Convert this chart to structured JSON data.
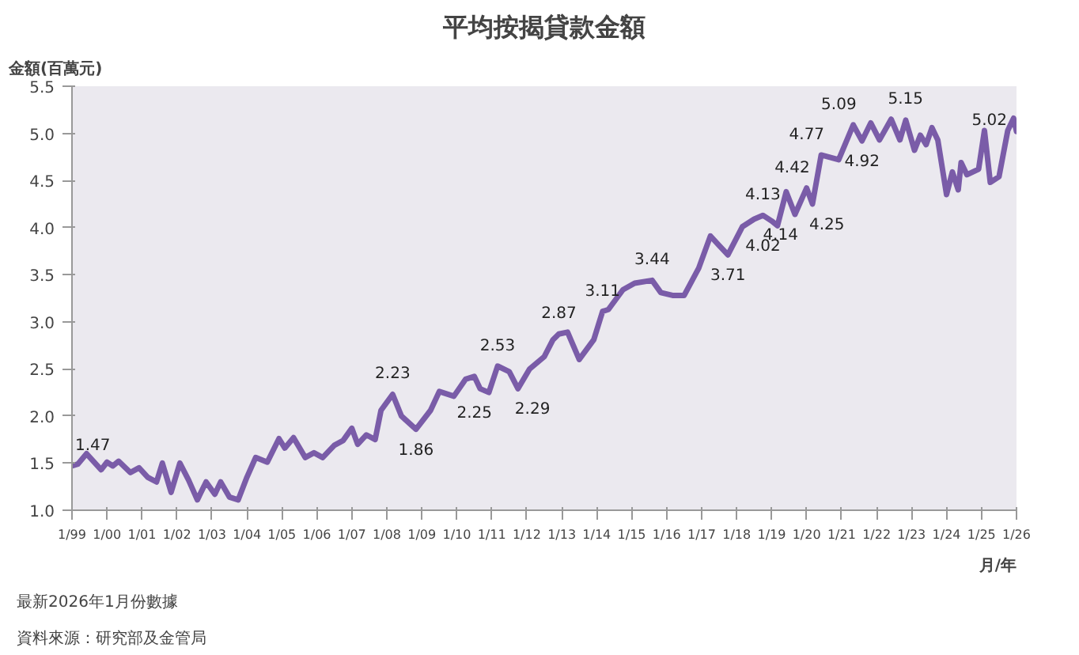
{
  "chart_data": {
    "type": "line",
    "title": "平均按揭貸款金額",
    "ylabel": "金額(百萬元)",
    "xlabel": "月/年",
    "annotations": [
      {
        "text": "1.47",
        "x": "1999-01",
        "y": 1.47
      },
      {
        "text": "2.23",
        "x": "2008-03",
        "y": 2.23
      },
      {
        "text": "1.86",
        "x": "2008-11",
        "y": 1.86
      },
      {
        "text": "2.25",
        "x": "2010-12",
        "y": 2.25
      },
      {
        "text": "2.29",
        "x": "2011-10",
        "y": 2.29
      },
      {
        "text": "2.53",
        "x": "2011-03",
        "y": 2.53
      },
      {
        "text": "2.87",
        "x": "2012-12",
        "y": 2.87
      },
      {
        "text": "3.11",
        "x": "2014-03",
        "y": 3.11
      },
      {
        "text": "3.44",
        "x": "2015-08",
        "y": 3.44
      },
      {
        "text": "3.71",
        "x": "2017-10",
        "y": 3.71
      },
      {
        "text": "4.13",
        "x": "2018-10",
        "y": 4.13
      },
      {
        "text": "4.02",
        "x": "2019-03",
        "y": 4.02
      },
      {
        "text": "4.14",
        "x": "2019-09",
        "y": 4.14
      },
      {
        "text": "4.25",
        "x": "2020-03",
        "y": 4.25
      },
      {
        "text": "4.42",
        "x": "2020-01",
        "y": 4.42
      },
      {
        "text": "4.77",
        "x": "2020-06",
        "y": 4.77
      },
      {
        "text": "5.09",
        "x": "2021-05",
        "y": 5.09
      },
      {
        "text": "4.92",
        "x": "2021-08",
        "y": 4.92
      },
      {
        "text": "5.15",
        "x": "2022-06",
        "y": 5.15
      },
      {
        "text": "5.02",
        "x": "2026-01",
        "y": 5.02
      },
      "最新2026年1月份數據",
      "資料來源：研究部及金管局"
    ],
    "x": [
      "1999-01",
      "1999-03",
      "1999-06",
      "1999-11",
      "2000-01",
      "2000-03",
      "2000-05",
      "2000-09",
      "2000-12",
      "2001-03",
      "2001-06",
      "2001-08",
      "2001-11",
      "2002-02",
      "2002-05",
      "2002-08",
      "2002-11",
      "2003-02",
      "2003-04",
      "2003-07",
      "2003-10",
      "2004-01",
      "2004-04",
      "2004-08",
      "2004-12",
      "2005-02",
      "2005-05",
      "2005-09",
      "2005-12",
      "2006-03",
      "2006-07",
      "2006-10",
      "2007-01",
      "2007-03",
      "2007-06",
      "2007-09",
      "2007-11",
      "2008-03",
      "2008-06",
      "2008-11",
      "2009-04",
      "2009-07",
      "2009-12",
      "2010-04",
      "2010-07",
      "2010-09",
      "2010-12",
      "2011-03",
      "2011-07",
      "2011-10",
      "2012-02",
      "2012-07",
      "2012-10",
      "2012-12",
      "2013-03",
      "2013-07",
      "2013-12",
      "2014-03",
      "2014-05",
      "2014-10",
      "2015-02",
      "2015-08",
      "2015-11",
      "2016-03",
      "2016-07",
      "2016-12",
      "2017-04",
      "2017-07",
      "2017-10",
      "2018-03",
      "2018-07",
      "2018-10",
      "2019-01",
      "2019-03",
      "2019-06",
      "2019-09",
      "2020-01",
      "2020-03",
      "2020-06",
      "2020-12",
      "2021-05",
      "2021-08",
      "2021-11",
      "2022-02",
      "2022-06",
      "2022-09",
      "2022-11",
      "2023-02",
      "2023-04",
      "2023-06",
      "2023-08",
      "2023-10",
      "2024-01",
      "2024-03",
      "2024-05",
      "2024-06",
      "2024-08",
      "2024-12",
      "2025-02",
      "2025-04",
      "2025-07",
      "2025-10",
      "2025-12",
      "2026-01"
    ],
    "series": [
      {
        "color": "#7a5ca8",
        "values": [
          1.47,
          1.49,
          1.6,
          1.43,
          1.51,
          1.47,
          1.52,
          1.4,
          1.45,
          1.35,
          1.3,
          1.5,
          1.19,
          1.5,
          1.32,
          1.11,
          1.3,
          1.17,
          1.3,
          1.14,
          1.11,
          1.35,
          1.56,
          1.51,
          1.76,
          1.66,
          1.77,
          1.56,
          1.61,
          1.56,
          1.69,
          1.74,
          1.87,
          1.7,
          1.8,
          1.75,
          2.06,
          2.23,
          2.0,
          1.86,
          2.06,
          2.26,
          2.21,
          2.39,
          2.42,
          2.29,
          2.25,
          2.53,
          2.47,
          2.29,
          2.5,
          2.63,
          2.81,
          2.87,
          2.89,
          2.6,
          2.81,
          3.11,
          3.13,
          3.34,
          3.41,
          3.44,
          3.31,
          3.28,
          3.28,
          3.57,
          3.91,
          3.81,
          3.71,
          4.01,
          4.09,
          4.13,
          4.07,
          4.02,
          4.38,
          4.14,
          4.42,
          4.25,
          4.77,
          4.72,
          5.09,
          4.92,
          5.11,
          4.93,
          5.15,
          4.93,
          5.14,
          4.82,
          4.98,
          4.88,
          5.06,
          4.93,
          4.35,
          4.59,
          4.4,
          4.69,
          4.56,
          4.62,
          5.03,
          4.48,
          4.54,
          5.03,
          5.16,
          5.02
        ]
      }
    ],
    "xlim": [
      "1999-01",
      "2026-01"
    ],
    "xticks": [
      {
        "value": "1999-01",
        "label": "1/99"
      },
      {
        "value": "2000-01",
        "label": "1/00"
      },
      {
        "value": "2001-01",
        "label": "1/01"
      },
      {
        "value": "2002-01",
        "label": "1/02"
      },
      {
        "value": "2003-01",
        "label": "1/03"
      },
      {
        "value": "2004-01",
        "label": "1/04"
      },
      {
        "value": "2005-01",
        "label": "1/05"
      },
      {
        "value": "2006-01",
        "label": "1/06"
      },
      {
        "value": "2007-01",
        "label": "1/07"
      },
      {
        "value": "2008-01",
        "label": "1/08"
      },
      {
        "value": "2009-01",
        "label": "1/09"
      },
      {
        "value": "2010-01",
        "label": "1/10"
      },
      {
        "value": "2011-01",
        "label": "1/11"
      },
      {
        "value": "2012-01",
        "label": "1/12"
      },
      {
        "value": "2013-01",
        "label": "1/13"
      },
      {
        "value": "2014-01",
        "label": "1/14"
      },
      {
        "value": "2015-01",
        "label": "1/15"
      },
      {
        "value": "2016-01",
        "label": "1/16"
      },
      {
        "value": "2017-01",
        "label": "1/17"
      },
      {
        "value": "2018-01",
        "label": "1/18"
      },
      {
        "value": "2019-01",
        "label": "1/19"
      },
      {
        "value": "2020-01",
        "label": "1/20"
      },
      {
        "value": "2021-01",
        "label": "1/21"
      },
      {
        "value": "2022-01",
        "label": "1/22"
      },
      {
        "value": "2023-01",
        "label": "1/23"
      },
      {
        "value": "2024-01",
        "label": "1/24"
      },
      {
        "value": "2025-01",
        "label": "1/25"
      },
      {
        "value": "2026-01",
        "label": "1/26"
      }
    ],
    "ylim": [
      1.0,
      5.5
    ],
    "yticks": [
      {
        "value": 1.0,
        "label": "1.0"
      },
      {
        "value": 1.5,
        "label": "1.5"
      },
      {
        "value": 2.0,
        "label": "2.0"
      },
      {
        "value": 2.5,
        "label": "2.5"
      },
      {
        "value": 3.0,
        "label": "3.0"
      },
      {
        "value": 3.5,
        "label": "3.5"
      },
      {
        "value": 4.0,
        "label": "4.0"
      },
      {
        "value": 4.5,
        "label": "4.5"
      },
      {
        "value": 5.0,
        "label": "5.0"
      },
      {
        "value": 5.5,
        "label": "5.5"
      }
    ],
    "grid": false,
    "marker": "none",
    "line_style": "solid"
  }
}
